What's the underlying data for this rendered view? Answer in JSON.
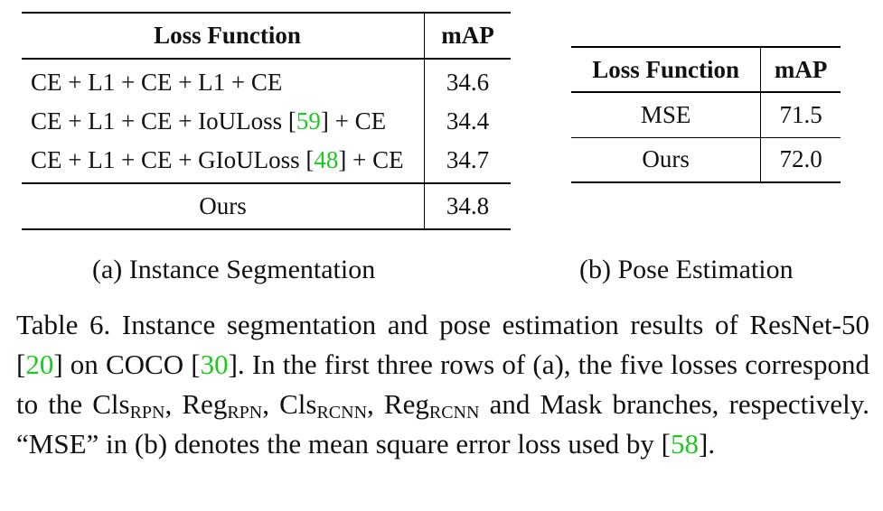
{
  "table_a": {
    "headers": {
      "loss": "Loss Function",
      "map": "mAP"
    },
    "rows": [
      {
        "pre": "CE + L1 + CE + L1 + CE",
        "cite": "",
        "post": "",
        "map": "34.6"
      },
      {
        "pre": "CE + L1 + CE + IoULoss [",
        "cite": "59",
        "post": "] + CE",
        "map": "34.4"
      },
      {
        "pre": "CE + L1 + CE + GIoULoss [",
        "cite": "48",
        "post": "] + CE",
        "map": "34.7"
      }
    ],
    "ours": {
      "loss": "Ours",
      "map": "34.8"
    },
    "subcaption": "(a) Instance Segmentation"
  },
  "table_b": {
    "headers": {
      "loss": "Loss Function",
      "map": "mAP"
    },
    "rows": [
      {
        "loss": "MSE",
        "map": "71.5"
      },
      {
        "loss": "Ours",
        "map": "72.0"
      }
    ],
    "subcaption": "(b) Pose Estimation"
  },
  "caption": {
    "t1": "Table 6. Instance segmentation and pose estimation results of ResNet-50 [",
    "c1": "20",
    "t2": "] on COCO [",
    "c2": "30",
    "t3": "]. In the first three rows of (a), the five losses correspond to the Cls",
    "s1": "RPN",
    "t4": ", Reg",
    "s2": "RPN",
    "t5": ", Cls",
    "s3": "RCNN",
    "t6": ", Reg",
    "s4": "RCNN",
    "t7": " and Mask branches, respectively. “MSE” in (b) denotes the mean square error loss used by [",
    "c3": "58",
    "t8": "]."
  }
}
